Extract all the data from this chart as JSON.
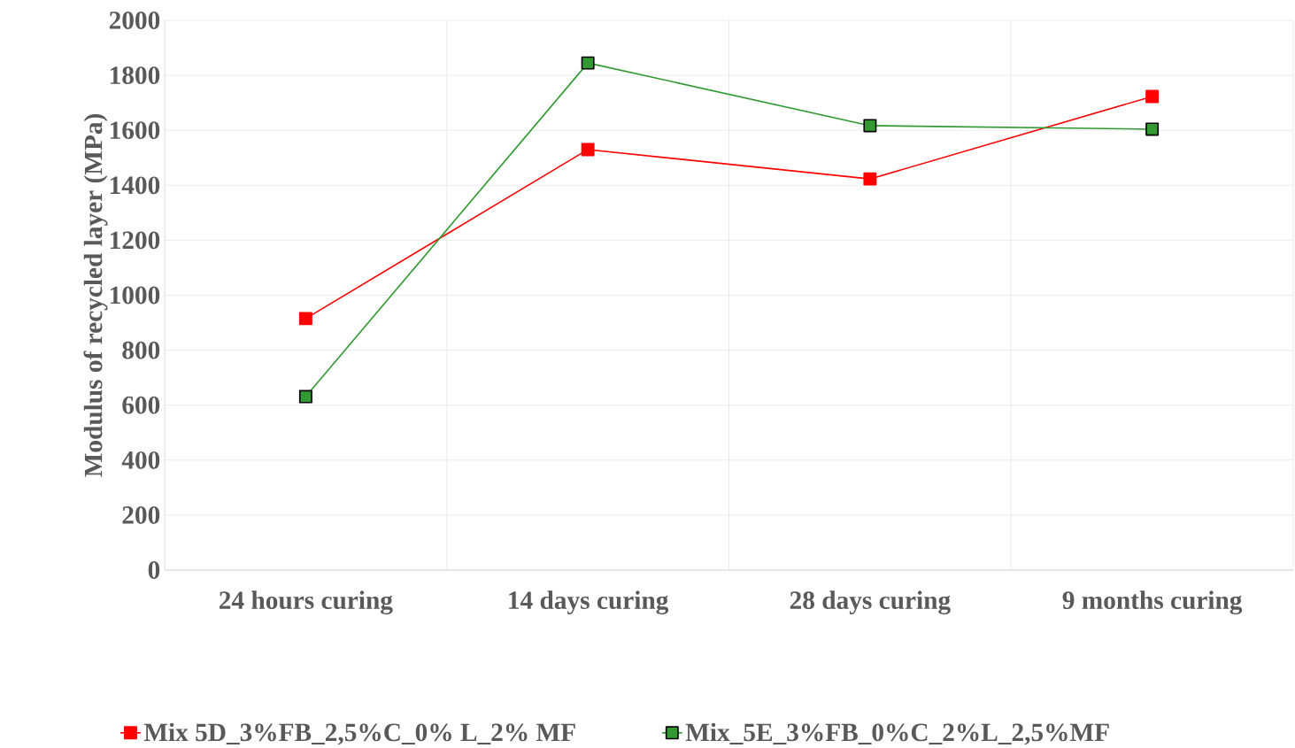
{
  "chart_data": {
    "type": "line",
    "ylabel": "Modulus of recycled layer (MPa)",
    "categories": [
      "24 hours curing",
      "14 days curing",
      "28 days curing",
      "9 months curing"
    ],
    "series": [
      {
        "name": "Mix 5D_3%FB_2,5%C_0% L_2% MF",
        "color": "#ff0000",
        "values": [
          915,
          1530,
          1423,
          1723
        ]
      },
      {
        "name": "Mix_5E_3%FB_0%C_2%L_2,5%MF",
        "color": "#339933",
        "values": [
          631,
          1845,
          1617,
          1604
        ]
      }
    ],
    "ylim": [
      0,
      2000
    ],
    "yticks": [
      0,
      200,
      400,
      600,
      800,
      1000,
      1200,
      1400,
      1600,
      1800,
      2000
    ],
    "grid": true,
    "legend": "bottom",
    "marker": "square",
    "line_style": "solid"
  }
}
